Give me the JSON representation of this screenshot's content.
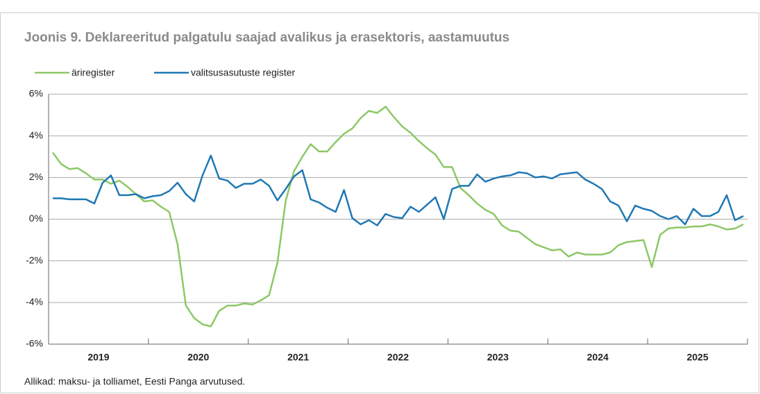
{
  "chart_data": {
    "type": "line",
    "title": "Joonis 9. Deklareeritud palgatulu saajad avalikus ja erasektoris, aastamuutus",
    "source": "Allikad: maksu- ja tolliamet, Eesti Panga arvutused.",
    "categories": [
      "2019",
      null,
      null,
      null,
      null,
      null,
      null,
      null,
      null,
      null,
      null,
      null,
      "2020",
      null,
      null,
      null,
      null,
      null,
      null,
      null,
      null,
      null,
      null,
      null,
      "2021",
      null,
      null,
      null,
      null,
      null,
      null,
      null,
      null,
      null,
      null,
      null,
      "2022",
      null,
      null,
      null,
      null,
      null,
      null,
      null,
      null,
      null,
      null,
      null,
      "2023",
      null,
      null,
      null,
      null,
      null,
      null,
      null,
      null,
      null,
      null,
      null,
      "2024",
      null,
      null,
      null,
      null,
      null,
      null,
      null,
      null,
      null,
      null,
      null,
      "2025",
      null,
      null,
      null,
      null,
      null,
      null,
      null,
      null,
      null,
      null,
      null
    ],
    "series": [
      {
        "name": "äriregister",
        "color": "#8cc866",
        "values": [
          3.2,
          2.65,
          2.4,
          2.45,
          2.2,
          1.9,
          1.9,
          1.7,
          1.85,
          1.55,
          1.2,
          0.85,
          0.9,
          0.6,
          0.35,
          -1.2,
          -4.15,
          -4.75,
          -5.05,
          -5.15,
          -4.4,
          -4.15,
          -4.15,
          -4.05,
          -4.1,
          -3.9,
          -3.65,
          -2.1,
          0.9,
          2.3,
          3.0,
          3.6,
          3.25,
          3.25,
          3.7,
          4.1,
          4.35,
          4.85,
          5.2,
          5.1,
          5.4,
          4.9,
          4.45,
          4.15,
          3.75,
          3.4,
          3.1,
          2.5,
          2.5,
          1.5,
          1.15,
          0.75,
          0.45,
          0.25,
          -0.3,
          -0.55,
          -0.6,
          -0.9,
          -1.2,
          -1.35,
          -1.5,
          -1.45,
          -1.8,
          -1.6,
          -1.7,
          -1.7,
          -1.7,
          -1.6,
          -1.25,
          -1.1,
          -1.05,
          -1.0,
          -2.3,
          -0.75,
          -0.45,
          -0.4,
          -0.4,
          -0.35,
          -0.35,
          -0.25,
          -0.35,
          -0.5,
          -0.45,
          -0.25
        ]
      },
      {
        "name": "valitsusasutuste register",
        "color": "#1f78b4",
        "values": [
          1.0,
          1.0,
          0.95,
          0.95,
          0.95,
          0.75,
          1.75,
          2.1,
          1.15,
          1.15,
          1.2,
          1.0,
          1.1,
          1.15,
          1.35,
          1.75,
          1.2,
          0.85,
          2.1,
          3.05,
          1.95,
          1.85,
          1.5,
          1.7,
          1.7,
          1.9,
          1.6,
          0.9,
          1.45,
          2.05,
          2.35,
          0.95,
          0.8,
          0.55,
          0.35,
          1.4,
          0.05,
          -0.25,
          -0.05,
          -0.3,
          0.25,
          0.1,
          0.05,
          0.6,
          0.35,
          0.7,
          1.05,
          0.0,
          1.45,
          1.6,
          1.6,
          2.15,
          1.8,
          1.95,
          2.05,
          2.1,
          2.25,
          2.2,
          2.0,
          2.05,
          1.95,
          2.15,
          2.2,
          2.25,
          1.9,
          1.7,
          1.45,
          0.85,
          0.65,
          -0.1,
          0.65,
          0.5,
          0.4,
          0.15,
          0.0,
          0.15,
          -0.25,
          0.5,
          0.15,
          0.15,
          0.35,
          1.15,
          -0.05,
          0.15
        ]
      }
    ],
    "ylim": [
      -6,
      6
    ],
    "yticks": [
      {
        "value": -6,
        "label": "-6%"
      },
      {
        "value": -4,
        "label": "-4%"
      },
      {
        "value": -2,
        "label": "-2%"
      },
      {
        "value": 0,
        "label": "0%"
      },
      {
        "value": 2,
        "label": "2%"
      },
      {
        "value": 4,
        "label": "4%"
      },
      {
        "value": 6,
        "label": "6%"
      }
    ],
    "grid": true
  }
}
